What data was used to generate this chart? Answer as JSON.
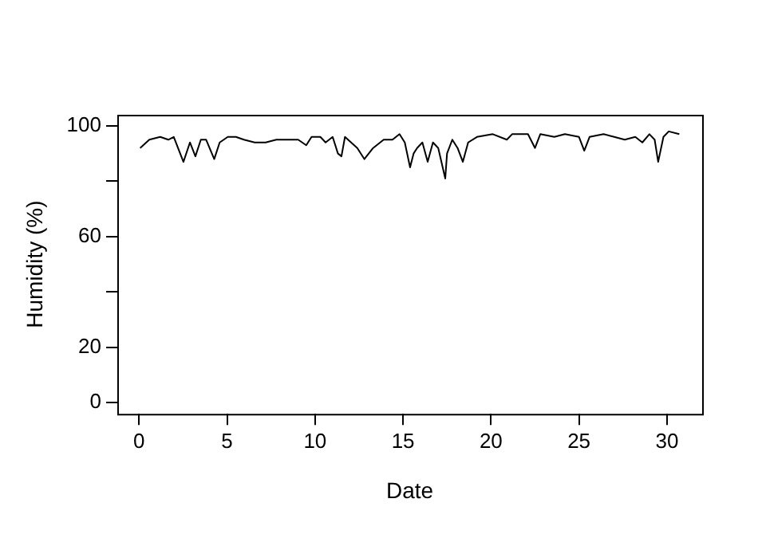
{
  "chart_data": {
    "type": "line",
    "xlabel": "Date",
    "ylabel": "Humidity (%)",
    "x": [
      0.06,
      0.58,
      1.2,
      1.66,
      1.97,
      2.52,
      2.89,
      3.2,
      3.51,
      3.81,
      4.27,
      4.58,
      5.04,
      5.5,
      5.96,
      6.57,
      7.19,
      7.8,
      8.4,
      9.04,
      9.5,
      9.8,
      10.3,
      10.6,
      11.0,
      11.3,
      11.5,
      11.7,
      12.4,
      12.8,
      13.3,
      13.9,
      14.4,
      14.8,
      15.1,
      15.4,
      15.6,
      15.8,
      16.1,
      16.4,
      16.7,
      17.0,
      17.4,
      17.5,
      17.8,
      18.1,
      18.4,
      18.7,
      19.2,
      20.1,
      20.9,
      21.2,
      22.1,
      22.5,
      22.8,
      23.6,
      24.2,
      25.0,
      25.3,
      25.6,
      26.4,
      27.0,
      27.6,
      28.2,
      28.6,
      29.0,
      29.3,
      29.5,
      29.8,
      30.1,
      30.7
    ],
    "series": [
      {
        "color": "#000000",
        "values": [
          92,
          95,
          96,
          95,
          96,
          87,
          94,
          89,
          95,
          95,
          88,
          94,
          96,
          96,
          95,
          94,
          94,
          95,
          95,
          95,
          93,
          96,
          96,
          94,
          96,
          90,
          89,
          96,
          92,
          88,
          92,
          95,
          95,
          97,
          94,
          85,
          90,
          92,
          94,
          87,
          94,
          92,
          81,
          90,
          95,
          92,
          87,
          94,
          96,
          97,
          95,
          97,
          97,
          92,
          97,
          96,
          97,
          96,
          91,
          96,
          97,
          96,
          95,
          96,
          94,
          97,
          95,
          87,
          96,
          98,
          97
        ]
      }
    ],
    "xlim": [
      -1.24,
      32.0
    ],
    "xticks": [
      0,
      5,
      10,
      15,
      20,
      25,
      30
    ],
    "ylim": [
      -4,
      104
    ],
    "yticks": [
      0,
      20,
      {
        "value": 40,
        "label": null
      },
      60,
      {
        "value": 80,
        "label": null
      },
      100
    ],
    "grid": false,
    "legend": false,
    "marker": "none",
    "line_style": "solid"
  }
}
